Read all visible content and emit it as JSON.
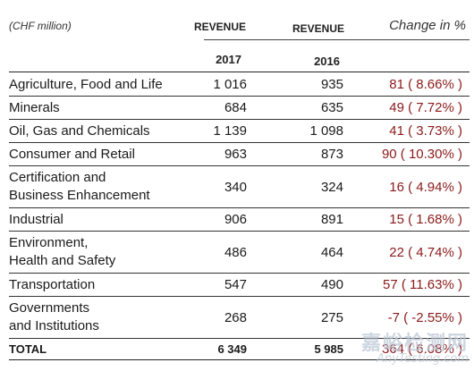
{
  "header": {
    "unit": "(CHF million)",
    "revenue_2017_label": "REVENUE",
    "revenue_2016_label": "REVENUE",
    "change_label": "Change in %",
    "year_2017": "2017",
    "year_2016": "2016"
  },
  "rows": [
    {
      "segment": "Agriculture, Food and Life",
      "rev2017": "1 016",
      "rev2016": "935",
      "change": "81 ( 8.66% )",
      "lines": 1
    },
    {
      "segment": "Minerals",
      "rev2017": "684",
      "rev2016": "635",
      "change": "49 ( 7.72% )",
      "lines": 1
    },
    {
      "segment": "Oil, Gas and Chemicals",
      "rev2017": "1 139",
      "rev2016": "1 098",
      "change": "41 ( 3.73% )",
      "lines": 1
    },
    {
      "segment": "Consumer and Retail",
      "rev2017": "963",
      "rev2016": "873",
      "change": "90 ( 10.30% )",
      "lines": 1
    },
    {
      "segment": "Certification and\nBusiness Enhancement",
      "rev2017": "340",
      "rev2016": "324",
      "change": "16 ( 4.94% )",
      "lines": 2
    },
    {
      "segment": "Industrial",
      "rev2017": "906",
      "rev2016": "891",
      "change": "15 ( 1.68% )",
      "lines": 1
    },
    {
      "segment": "Environment,\nHealth and Safety",
      "rev2017": "486",
      "rev2016": "464",
      "change": "22 ( 4.74% )",
      "lines": 2
    },
    {
      "segment": "Transportation",
      "rev2017": "547",
      "rev2016": "490",
      "change": "57 ( 11.63% )",
      "lines": 1
    },
    {
      "segment": "Governments\nand Institutions",
      "rev2017": "268",
      "rev2016": "275",
      "change": "-7 ( -2.55% )",
      "lines": 2
    }
  ],
  "total": {
    "label": "TOTAL",
    "rev2017": "6 349",
    "rev2016": "5 985",
    "change": "364 ( 6.08% )"
  },
  "watermark": {
    "cn": "嘉峪检测网",
    "en": "AnyTesting.com"
  },
  "colors": {
    "change_text": "#8b1a1a",
    "watermark": "#bec8d7"
  }
}
